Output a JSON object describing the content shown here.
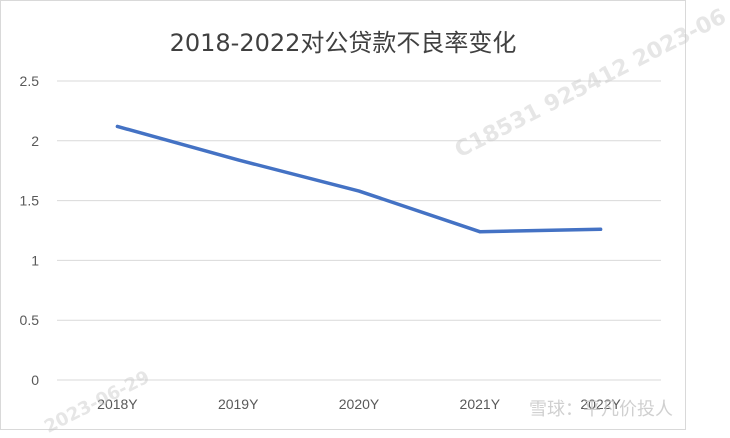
{
  "chart_data": {
    "type": "line",
    "title": "2018-2022对公贷款不良率变化",
    "categories": [
      "2018Y",
      "2019Y",
      "2020Y",
      "2021Y",
      "2022Y"
    ],
    "series": [
      {
        "values": [
          2.12,
          1.84,
          1.58,
          1.24,
          1.26
        ]
      }
    ],
    "ylim": [
      0,
      2.5
    ],
    "yticks": [
      "0",
      "0.5",
      "1",
      "1.5",
      "2",
      "2.5"
    ],
    "grid": true,
    "legend": "none",
    "line_color": "#4472C4",
    "grid_color": "#d9d9d9"
  },
  "watermark": {
    "main": "C18531 925412 2023-06",
    "corner": "2023-06-29",
    "brand": "雪球：平凡价投人"
  }
}
